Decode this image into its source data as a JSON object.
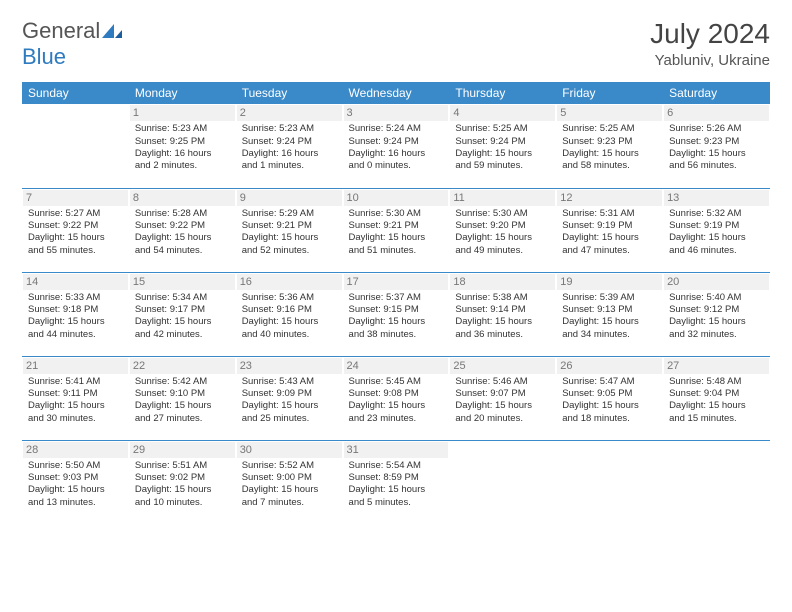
{
  "logo": {
    "text1": "General",
    "text2": "Blue"
  },
  "title": {
    "month": "July 2024",
    "location": "Yabluniv, Ukraine"
  },
  "colors": {
    "header_bg": "#3a89c9",
    "header_fg": "#ffffff",
    "daynum_bg": "#f1f1f1",
    "daynum_fg": "#777777",
    "row_sep": "#3a89c9",
    "text": "#333333"
  },
  "weekdays": [
    "Sunday",
    "Monday",
    "Tuesday",
    "Wednesday",
    "Thursday",
    "Friday",
    "Saturday"
  ],
  "weeks": [
    [
      null,
      {
        "n": "1",
        "sr": "5:23 AM",
        "ss": "9:25 PM",
        "dl": "16 hours and 2 minutes."
      },
      {
        "n": "2",
        "sr": "5:23 AM",
        "ss": "9:24 PM",
        "dl": "16 hours and 1 minutes."
      },
      {
        "n": "3",
        "sr": "5:24 AM",
        "ss": "9:24 PM",
        "dl": "16 hours and 0 minutes."
      },
      {
        "n": "4",
        "sr": "5:25 AM",
        "ss": "9:24 PM",
        "dl": "15 hours and 59 minutes."
      },
      {
        "n": "5",
        "sr": "5:25 AM",
        "ss": "9:23 PM",
        "dl": "15 hours and 58 minutes."
      },
      {
        "n": "6",
        "sr": "5:26 AM",
        "ss": "9:23 PM",
        "dl": "15 hours and 56 minutes."
      }
    ],
    [
      {
        "n": "7",
        "sr": "5:27 AM",
        "ss": "9:22 PM",
        "dl": "15 hours and 55 minutes."
      },
      {
        "n": "8",
        "sr": "5:28 AM",
        "ss": "9:22 PM",
        "dl": "15 hours and 54 minutes."
      },
      {
        "n": "9",
        "sr": "5:29 AM",
        "ss": "9:21 PM",
        "dl": "15 hours and 52 minutes."
      },
      {
        "n": "10",
        "sr": "5:30 AM",
        "ss": "9:21 PM",
        "dl": "15 hours and 51 minutes."
      },
      {
        "n": "11",
        "sr": "5:30 AM",
        "ss": "9:20 PM",
        "dl": "15 hours and 49 minutes."
      },
      {
        "n": "12",
        "sr": "5:31 AM",
        "ss": "9:19 PM",
        "dl": "15 hours and 47 minutes."
      },
      {
        "n": "13",
        "sr": "5:32 AM",
        "ss": "9:19 PM",
        "dl": "15 hours and 46 minutes."
      }
    ],
    [
      {
        "n": "14",
        "sr": "5:33 AM",
        "ss": "9:18 PM",
        "dl": "15 hours and 44 minutes."
      },
      {
        "n": "15",
        "sr": "5:34 AM",
        "ss": "9:17 PM",
        "dl": "15 hours and 42 minutes."
      },
      {
        "n": "16",
        "sr": "5:36 AM",
        "ss": "9:16 PM",
        "dl": "15 hours and 40 minutes."
      },
      {
        "n": "17",
        "sr": "5:37 AM",
        "ss": "9:15 PM",
        "dl": "15 hours and 38 minutes."
      },
      {
        "n": "18",
        "sr": "5:38 AM",
        "ss": "9:14 PM",
        "dl": "15 hours and 36 minutes."
      },
      {
        "n": "19",
        "sr": "5:39 AM",
        "ss": "9:13 PM",
        "dl": "15 hours and 34 minutes."
      },
      {
        "n": "20",
        "sr": "5:40 AM",
        "ss": "9:12 PM",
        "dl": "15 hours and 32 minutes."
      }
    ],
    [
      {
        "n": "21",
        "sr": "5:41 AM",
        "ss": "9:11 PM",
        "dl": "15 hours and 30 minutes."
      },
      {
        "n": "22",
        "sr": "5:42 AM",
        "ss": "9:10 PM",
        "dl": "15 hours and 27 minutes."
      },
      {
        "n": "23",
        "sr": "5:43 AM",
        "ss": "9:09 PM",
        "dl": "15 hours and 25 minutes."
      },
      {
        "n": "24",
        "sr": "5:45 AM",
        "ss": "9:08 PM",
        "dl": "15 hours and 23 minutes."
      },
      {
        "n": "25",
        "sr": "5:46 AM",
        "ss": "9:07 PM",
        "dl": "15 hours and 20 minutes."
      },
      {
        "n": "26",
        "sr": "5:47 AM",
        "ss": "9:05 PM",
        "dl": "15 hours and 18 minutes."
      },
      {
        "n": "27",
        "sr": "5:48 AM",
        "ss": "9:04 PM",
        "dl": "15 hours and 15 minutes."
      }
    ],
    [
      {
        "n": "28",
        "sr": "5:50 AM",
        "ss": "9:03 PM",
        "dl": "15 hours and 13 minutes."
      },
      {
        "n": "29",
        "sr": "5:51 AM",
        "ss": "9:02 PM",
        "dl": "15 hours and 10 minutes."
      },
      {
        "n": "30",
        "sr": "5:52 AM",
        "ss": "9:00 PM",
        "dl": "15 hours and 7 minutes."
      },
      {
        "n": "31",
        "sr": "5:54 AM",
        "ss": "8:59 PM",
        "dl": "15 hours and 5 minutes."
      },
      null,
      null,
      null
    ]
  ],
  "labels": {
    "sunrise": "Sunrise: ",
    "sunset": "Sunset: ",
    "daylight": "Daylight: "
  }
}
